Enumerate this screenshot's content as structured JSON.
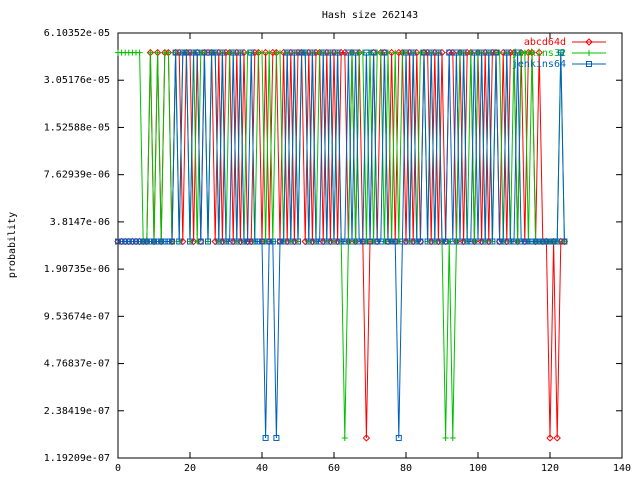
{
  "chart_data": {
    "type": "line",
    "title": "Hash size 262143",
    "ylabel": "probability",
    "log_y": true,
    "log_base": 2,
    "grid": false,
    "legend": "upper right",
    "x": [
      0,
      1,
      2,
      3,
      4,
      5,
      6,
      7,
      8,
      9,
      10,
      11,
      12,
      13,
      14,
      15,
      16,
      17,
      18,
      19,
      20,
      21,
      22,
      23,
      24,
      25,
      26,
      27,
      28,
      29,
      30,
      31,
      32,
      33,
      34,
      35,
      36,
      37,
      38,
      39,
      40,
      41,
      42,
      43,
      44,
      45,
      46,
      47,
      48,
      49,
      50,
      51,
      52,
      53,
      54,
      55,
      56,
      57,
      58,
      59,
      60,
      61,
      62,
      63,
      64,
      65,
      66,
      67,
      68,
      69,
      70,
      71,
      72,
      73,
      74,
      75,
      76,
      77,
      78,
      79,
      80,
      81,
      82,
      83,
      84,
      85,
      86,
      87,
      88,
      89,
      90,
      91,
      92,
      93,
      94,
      95,
      96,
      97,
      98,
      99,
      100,
      101,
      102,
      103,
      104,
      105,
      106,
      107,
      108,
      109,
      110,
      111,
      112,
      113,
      114,
      115,
      116,
      117,
      118,
      119,
      120,
      121,
      122,
      123,
      124
    ],
    "series": [
      {
        "name": "abcd64d",
        "color": "#ff0000",
        "marker": "diamond",
        "values": [
          2.86e-06,
          2.86e-06,
          2.86e-06,
          2.86e-06,
          2.86e-06,
          2.86e-06,
          2.86e-06,
          2.86e-06,
          2.86e-06,
          4.58e-05,
          2.86e-06,
          4.58e-05,
          2.86e-06,
          4.58e-05,
          4.58e-05,
          2.86e-06,
          4.58e-05,
          4.58e-05,
          2.86e-06,
          4.58e-05,
          4.58e-05,
          2.86e-06,
          4.58e-05,
          2.86e-06,
          4.58e-05,
          4.58e-05,
          4.58e-05,
          2.86e-06,
          4.58e-05,
          2.86e-06,
          4.58e-05,
          4.58e-05,
          2.86e-06,
          4.58e-05,
          2.86e-06,
          4.58e-05,
          2.86e-06,
          2.86e-06,
          4.58e-05,
          4.58e-05,
          2.86e-06,
          4.58e-05,
          2.86e-06,
          4.58e-05,
          4.58e-05,
          2.86e-06,
          4.58e-05,
          2.86e-06,
          4.58e-05,
          2.86e-06,
          4.58e-05,
          4.58e-05,
          2.86e-06,
          4.58e-05,
          2.86e-06,
          4.58e-05,
          4.58e-05,
          2.86e-06,
          4.58e-05,
          2.86e-06,
          4.58e-05,
          2.86e-06,
          4.58e-05,
          4.58e-05,
          2.86e-06,
          4.58e-05,
          2.86e-06,
          4.58e-05,
          2.86e-06,
          1.6e-07,
          2.86e-06,
          4.58e-05,
          2.86e-06,
          4.58e-05,
          4.58e-05,
          2.86e-06,
          4.58e-05,
          2.86e-06,
          4.58e-05,
          4.58e-05,
          2.86e-06,
          4.58e-05,
          2.86e-06,
          4.58e-05,
          2.86e-06,
          4.58e-05,
          4.58e-05,
          2.86e-06,
          4.58e-05,
          2.86e-06,
          4.58e-05,
          2.86e-06,
          4.58e-05,
          4.58e-05,
          2.86e-06,
          4.58e-05,
          2.86e-06,
          4.58e-05,
          4.58e-05,
          2.86e-06,
          4.58e-05,
          2.86e-06,
          4.58e-05,
          2.86e-06,
          4.58e-05,
          4.58e-05,
          2.86e-06,
          4.58e-05,
          2.86e-06,
          4.58e-05,
          4.58e-05,
          2.86e-06,
          4.58e-05,
          2.86e-06,
          4.58e-05,
          4.58e-05,
          2.86e-06,
          4.58e-05,
          2.86e-06,
          2.86e-06,
          1.6e-07,
          2.86e-06,
          1.6e-07,
          2.86e-06,
          2.86e-06
        ]
      },
      {
        "name": "jenkins32",
        "color": "#00c000",
        "marker": "plus",
        "values": [
          4.58e-05,
          4.58e-05,
          4.58e-05,
          4.58e-05,
          4.58e-05,
          4.58e-05,
          4.58e-05,
          2.86e-06,
          2.86e-06,
          4.58e-05,
          2.86e-06,
          4.58e-05,
          2.86e-06,
          4.58e-05,
          4.58e-05,
          2.86e-06,
          4.58e-05,
          2.86e-06,
          4.58e-05,
          4.58e-05,
          2.86e-06,
          4.58e-05,
          2.86e-06,
          4.58e-05,
          4.58e-05,
          2.86e-06,
          4.58e-05,
          4.58e-05,
          2.86e-06,
          4.58e-05,
          2.86e-06,
          4.58e-05,
          4.58e-05,
          2.86e-06,
          4.58e-05,
          2.86e-06,
          4.58e-05,
          4.58e-05,
          2.86e-06,
          4.58e-05,
          4.58e-05,
          2.86e-06,
          4.58e-05,
          2.86e-06,
          4.58e-05,
          4.58e-05,
          2.86e-06,
          4.58e-05,
          2.86e-06,
          4.58e-05,
          2.86e-06,
          4.58e-05,
          4.58e-05,
          2.86e-06,
          4.58e-05,
          2.86e-06,
          4.58e-05,
          4.58e-05,
          2.86e-06,
          4.58e-05,
          2.86e-06,
          4.58e-05,
          2.86e-06,
          1.6e-07,
          2.86e-06,
          4.58e-05,
          2.86e-06,
          4.58e-05,
          4.58e-05,
          2.86e-06,
          4.58e-05,
          2.86e-06,
          4.58e-05,
          4.58e-05,
          2.86e-06,
          4.58e-05,
          2.86e-06,
          4.58e-05,
          2.86e-06,
          4.58e-05,
          4.58e-05,
          2.86e-06,
          4.58e-05,
          2.86e-06,
          4.58e-05,
          4.58e-05,
          2.86e-06,
          4.58e-05,
          2.86e-06,
          4.58e-05,
          2.86e-06,
          1.6e-07,
          2.86e-06,
          1.6e-07,
          2.86e-06,
          4.58e-05,
          4.58e-05,
          2.86e-06,
          4.58e-05,
          2.86e-06,
          4.58e-05,
          4.58e-05,
          2.86e-06,
          4.58e-05,
          2.86e-06,
          4.58e-05,
          4.58e-05,
          2.86e-06,
          4.58e-05,
          2.86e-06,
          4.58e-05,
          2.86e-06,
          4.58e-05,
          4.58e-05,
          2.86e-06,
          4.58e-05,
          2.86e-06,
          2.86e-06,
          2.86e-06,
          2.86e-06,
          2.86e-06,
          2.86e-06,
          2.86e-06,
          4.58e-05,
          2.86e-06
        ]
      },
      {
        "name": "jenkins64",
        "color": "#0060c0",
        "marker": "square",
        "values": [
          2.86e-06,
          2.86e-06,
          2.86e-06,
          2.86e-06,
          2.86e-06,
          2.86e-06,
          2.86e-06,
          2.86e-06,
          2.86e-06,
          2.86e-06,
          2.86e-06,
          2.86e-06,
          2.86e-06,
          2.86e-06,
          2.86e-06,
          2.86e-06,
          4.58e-05,
          2.86e-06,
          4.58e-05,
          4.58e-05,
          2.86e-06,
          4.58e-05,
          4.58e-05,
          2.86e-06,
          4.58e-05,
          2.86e-06,
          4.58e-05,
          4.58e-05,
          2.86e-06,
          4.58e-05,
          2.86e-06,
          2.86e-06,
          4.58e-05,
          2.86e-06,
          4.58e-05,
          2.86e-06,
          2.86e-06,
          4.58e-05,
          2.86e-06,
          2.86e-06,
          2.86e-06,
          1.6e-07,
          2.86e-06,
          2.86e-06,
          1.6e-07,
          2.86e-06,
          2.86e-06,
          4.58e-05,
          2.86e-06,
          4.58e-05,
          2.86e-06,
          4.58e-05,
          4.58e-05,
          2.86e-06,
          4.58e-05,
          2.86e-06,
          2.86e-06,
          4.58e-05,
          2.86e-06,
          4.58e-05,
          2.86e-06,
          4.58e-05,
          2.86e-06,
          2.86e-06,
          4.58e-05,
          2.86e-06,
          4.58e-05,
          2.86e-06,
          2.86e-06,
          4.58e-05,
          2.86e-06,
          4.58e-05,
          2.86e-06,
          2.86e-06,
          4.58e-05,
          2.86e-06,
          2.86e-06,
          2.86e-06,
          1.6e-07,
          2.86e-06,
          4.58e-05,
          2.86e-06,
          4.58e-05,
          2.86e-06,
          2.86e-06,
          4.58e-05,
          2.86e-06,
          4.58e-05,
          2.86e-06,
          4.58e-05,
          2.86e-06,
          2.86e-06,
          4.58e-05,
          2.86e-06,
          4.58e-05,
          2.86e-06,
          4.58e-05,
          2.86e-06,
          2.86e-06,
          4.58e-05,
          2.86e-06,
          4.58e-05,
          2.86e-06,
          4.58e-05,
          2.86e-06,
          4.58e-05,
          2.86e-06,
          2.86e-06,
          4.58e-05,
          2.86e-06,
          2.86e-06,
          4.58e-05,
          2.86e-06,
          2.86e-06,
          2.86e-06,
          2.86e-06,
          2.86e-06,
          2.86e-06,
          2.86e-06,
          2.86e-06,
          2.86e-06,
          2.86e-06,
          2.86e-06,
          4.58e-05,
          2.86e-06
        ]
      }
    ],
    "xlim": [
      0,
      140
    ],
    "xticks": [
      0,
      20,
      40,
      60,
      80,
      100,
      120,
      140
    ],
    "ylim": [
      1.19209e-07,
      6.10352e-05
    ],
    "yticks": [
      {
        "value": 1.19209e-07,
        "label": "1.19209e-07"
      },
      {
        "value": 2.38419e-07,
        "label": "2.38419e-07"
      },
      {
        "value": 4.76837e-07,
        "label": "4.76837e-07"
      },
      {
        "value": 9.53674e-07,
        "label": "9.53674e-07"
      },
      {
        "value": 1.90735e-06,
        "label": "1.90735e-06"
      },
      {
        "value": 3.8147e-06,
        "label": "3.8147e-06"
      },
      {
        "value": 7.62939e-06,
        "label": "7.62939e-06"
      },
      {
        "value": 1.52588e-05,
        "label": "1.52588e-05"
      },
      {
        "value": 3.05176e-05,
        "label": "3.05176e-05"
      },
      {
        "value": 6.10352e-05,
        "label": "6.10352e-05"
      }
    ]
  }
}
